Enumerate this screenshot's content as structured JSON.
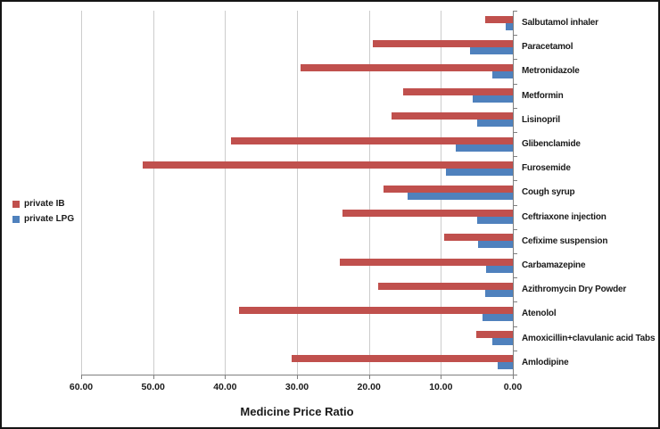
{
  "figure": {
    "background": "#ffffff",
    "border_color": "#151515"
  },
  "colors": {
    "private_ib": "#c0504d",
    "private_lpg": "#4f81bd",
    "gridline": "#cccccc",
    "axis": "#7f7f7f",
    "text": "#1a1a1a"
  },
  "chart_data": {
    "type": "bar",
    "orientation": "horizontal",
    "title": "",
    "xlabel": "Medicine Price Ratio",
    "ylabel": "",
    "grid": true,
    "legend_position": "left",
    "x_axis": {
      "label": "Medicine Price Ratio",
      "min": 0,
      "max": 60,
      "tick_interval": 10,
      "reversed": true,
      "tick_values": [
        60,
        50,
        40,
        30,
        20,
        10,
        0
      ],
      "tick_labels": [
        "60.00",
        "50.00",
        "40.00",
        "30.00",
        "20.00",
        "10.00",
        "0.00"
      ]
    },
    "categories": [
      "Salbutamol inhaler",
      "Paracetamol",
      "Metronidazole",
      "Metformin",
      "Lisinopril",
      "Glibenclamide",
      "Furosemide",
      "Cough syrup",
      "Ceftriaxone injection",
      "Cefixime suspension",
      "Carbamazepine",
      "Azithromycin Dry Powder",
      "Atenolol",
      "Amoxicillin+clavulanic acid Tabs",
      "Amlodipine"
    ],
    "series": [
      {
        "name": "private IB",
        "color": "#c0504d",
        "values": [
          3.8,
          19.5,
          29.5,
          15.2,
          16.8,
          39.2,
          51.5,
          18.0,
          23.7,
          9.6,
          24.0,
          18.7,
          38.1,
          5.1,
          30.8
        ]
      },
      {
        "name": "private LPG",
        "color": "#4f81bd",
        "values": [
          1.0,
          5.9,
          2.9,
          5.6,
          5.0,
          7.9,
          9.3,
          14.6,
          5.0,
          4.8,
          3.7,
          3.9,
          4.2,
          2.9,
          2.1
        ]
      }
    ]
  }
}
